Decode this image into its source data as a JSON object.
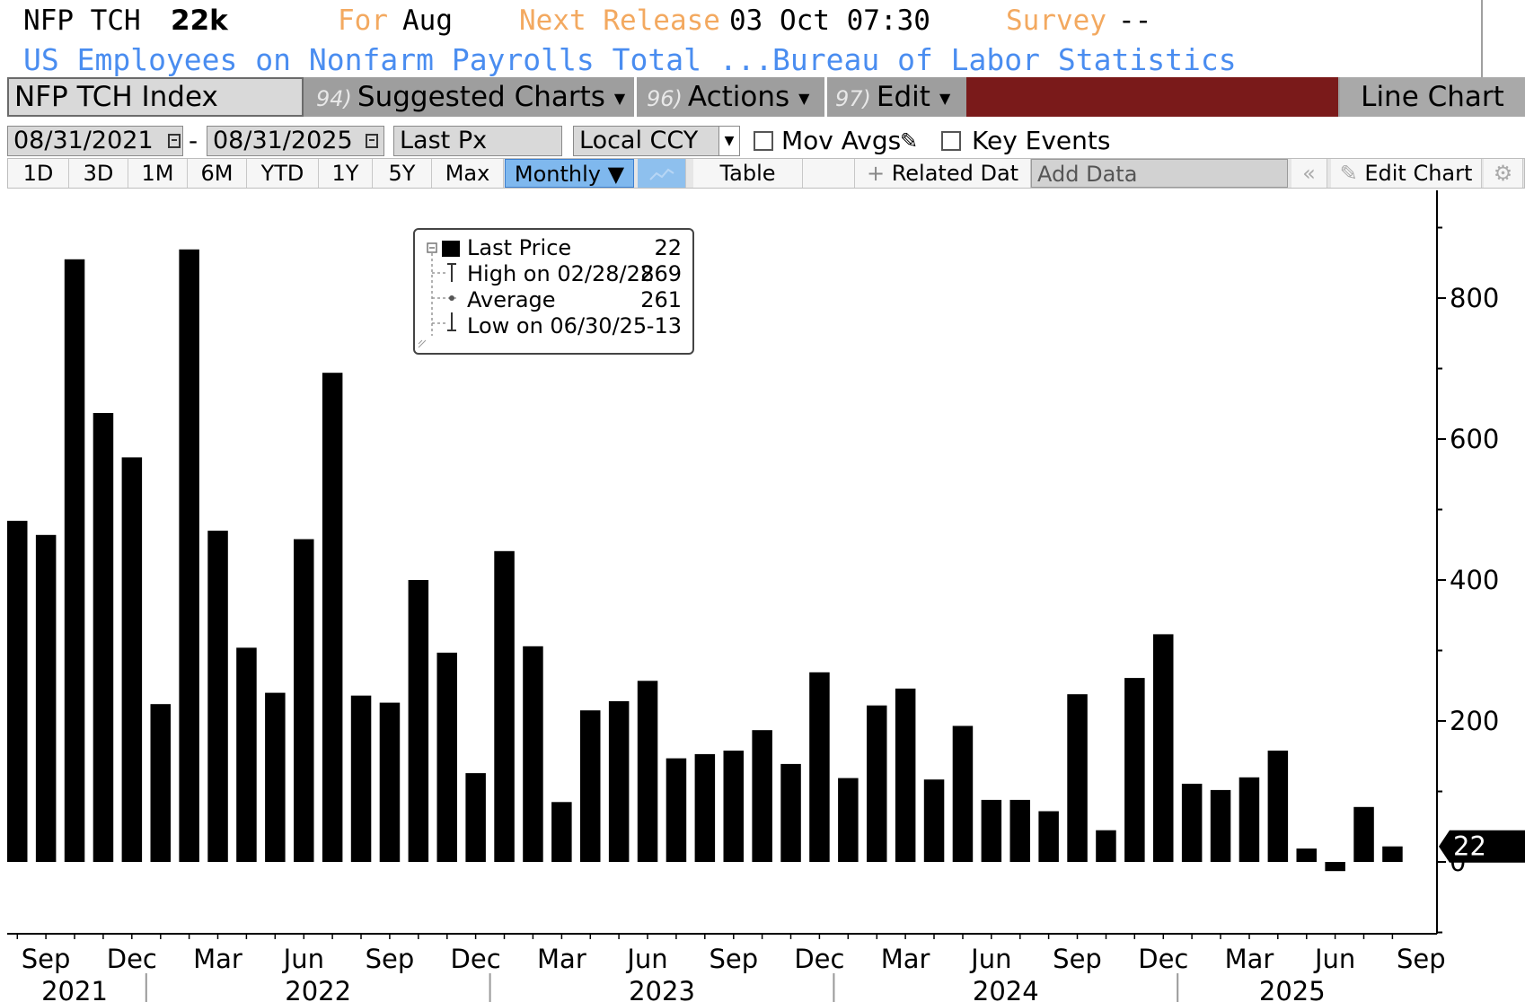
{
  "header": {
    "ticker": "NFP TCH",
    "last_value": "22k",
    "for_label": "For",
    "for_value": "Aug",
    "next_release_label": "Next Release",
    "next_release_value": "03 Oct 07:30",
    "survey_label": "Survey",
    "survey_value": "--",
    "description": "US Employees on Nonfarm Payrolls Total ...",
    "source": "Bureau of Labor Statistics"
  },
  "toolbar": {
    "security": "NFP TCH Index",
    "suggested_num": "94)",
    "suggested_label": "Suggested Charts",
    "actions_num": "96)",
    "actions_label": "Actions",
    "edit_num": "97)",
    "edit_label": "Edit",
    "chart_type": "Line Chart"
  },
  "controls": {
    "start_date": "08/31/2021",
    "date_separator": "-",
    "end_date": "08/31/2025",
    "field": "Last Px",
    "currency": "Local CCY",
    "mov_avgs": "Mov Avgs",
    "key_events": "Key Events",
    "mov_avgs_checked": false,
    "key_events_checked": false
  },
  "range_bar": {
    "ranges": [
      "1D",
      "3D",
      "1M",
      "6M",
      "YTD",
      "1Y",
      "5Y",
      "Max"
    ],
    "frequency": "Monthly ▼",
    "table": "Table",
    "related": "Related Dat",
    "add_data_placeholder": "Add Data",
    "edit_chart": "Edit Chart"
  },
  "legend": {
    "last_price_label": "Last Price",
    "last_price_value": "22",
    "high_label": "High on 02/28/22",
    "high_value": "869",
    "average_label": "Average",
    "average_value": "261",
    "low_label": "Low on 06/30/25",
    "low_value": "-13"
  },
  "chart_data": {
    "type": "bar",
    "x": [
      "2021-08",
      "2021-09",
      "2021-10",
      "2021-11",
      "2021-12",
      "2022-01",
      "2022-02",
      "2022-03",
      "2022-04",
      "2022-05",
      "2022-06",
      "2022-07",
      "2022-08",
      "2022-09",
      "2022-10",
      "2022-11",
      "2022-12",
      "2023-01",
      "2023-02",
      "2023-03",
      "2023-04",
      "2023-05",
      "2023-06",
      "2023-07",
      "2023-08",
      "2023-09",
      "2023-10",
      "2023-11",
      "2023-12",
      "2024-01",
      "2024-02",
      "2024-03",
      "2024-04",
      "2024-05",
      "2024-06",
      "2024-07",
      "2024-08",
      "2024-09",
      "2024-10",
      "2024-11",
      "2024-12",
      "2025-01",
      "2025-02",
      "2025-03",
      "2025-04",
      "2025-05",
      "2025-06",
      "2025-07",
      "2025-08"
    ],
    "values": [
      484,
      464,
      855,
      637,
      574,
      224,
      869,
      470,
      304,
      240,
      458,
      694,
      236,
      226,
      400,
      297,
      126,
      441,
      306,
      85,
      215,
      228,
      257,
      147,
      153,
      158,
      187,
      139,
      269,
      119,
      222,
      246,
      117,
      193,
      88,
      88,
      72,
      238,
      45,
      261,
      323,
      111,
      102,
      120,
      158,
      19,
      -13,
      78,
      22
    ],
    "y_ticks": [
      0,
      200,
      400,
      600,
      800
    ],
    "ylim": [
      -100,
      945
    ],
    "x_month_ticks": [
      "Sep",
      "Dec",
      "Mar",
      "Jun",
      "Sep",
      "Dec",
      "Mar",
      "Jun",
      "Sep",
      "Dec",
      "Mar",
      "Jun",
      "Sep",
      "Dec",
      "Mar",
      "Jun",
      "Sep"
    ],
    "x_year_labels": [
      "2021",
      "2022",
      "2023",
      "2024",
      "2025"
    ],
    "last_value_label": "22",
    "bar_color": "#000000",
    "grid": false
  }
}
